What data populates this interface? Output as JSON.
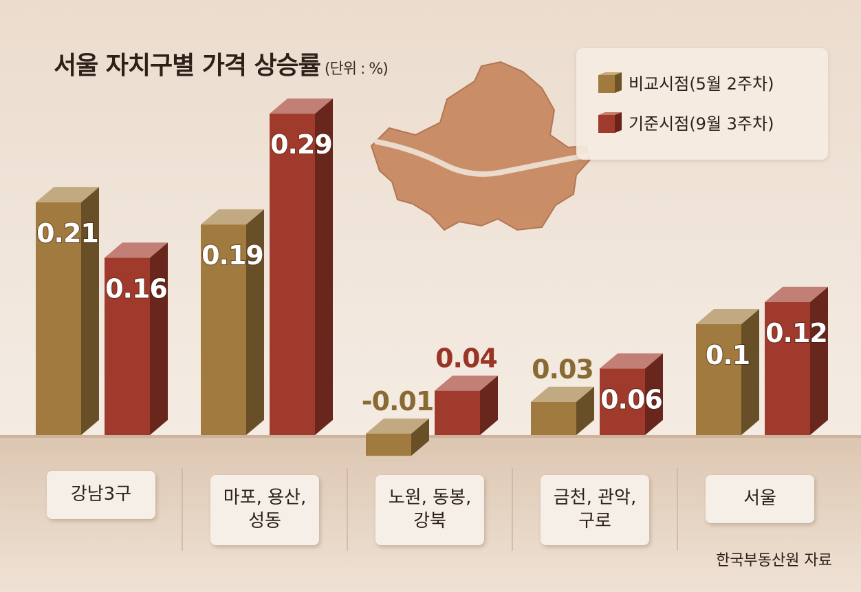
{
  "chart_data": {
    "type": "bar",
    "title": "서울 자치구별 가격 상승률",
    "unit_note": "(단위 : %)",
    "categories": [
      "강남3구",
      "마포, 용산,\n성동",
      "노원, 동봉,\n강북",
      "금천, 관악,\n구로",
      "서울"
    ],
    "series": [
      {
        "name": "비교시점(5월 2주차)",
        "values": [
          0.21,
          0.19,
          -0.01,
          0.03,
          0.1
        ],
        "color": "#a07a3e"
      },
      {
        "name": "기준시점(9월 3주차)",
        "values": [
          0.16,
          0.29,
          0.04,
          0.06,
          0.12
        ],
        "color": "#a03a2c"
      }
    ],
    "data_labels": [
      [
        "0.21",
        "0.19",
        "-0.01",
        "0.03",
        "0.1"
      ],
      [
        "0.16",
        "0.29",
        "0.04",
        "0.06",
        "0.12"
      ]
    ],
    "ylim": [
      -0.02,
      0.3
    ],
    "grid": false,
    "legend_position": "top-right",
    "source": "한국부동산원 자료"
  }
}
